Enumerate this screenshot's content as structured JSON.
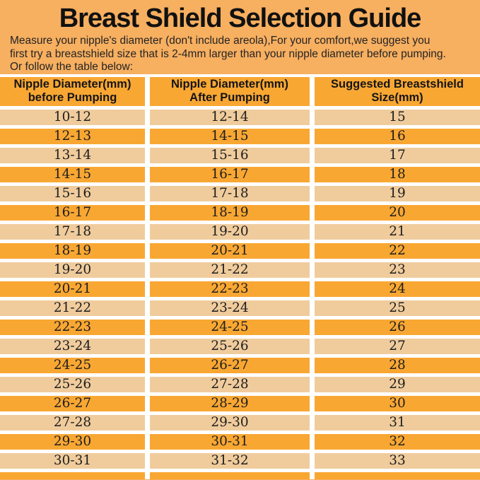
{
  "page": {
    "title": "Breast Shield Selection Guide",
    "intro_lines": [
      "Measure your nipple's diameter   (don't include areola),For your comfort,we suggest you",
      "first try a breastshield size that is 2-4mm larger than your nipple diameter before pumping.",
      "Or follow the table below:"
    ]
  },
  "table": {
    "headers": [
      {
        "line1": "Nipple Diameter(mm)",
        "line2": "before Pumping"
      },
      {
        "line1": "Nipple Diameter(mm)",
        "line2": "After Pumping"
      },
      {
        "line1": "Suggested Breastshield",
        "line2": "Size(mm)"
      }
    ],
    "rows": [
      [
        "10-12",
        "12-14",
        "15"
      ],
      [
        "12-13",
        "14-15",
        "16"
      ],
      [
        "13-14",
        "15-16",
        "17"
      ],
      [
        "14-15",
        "16-17",
        "18"
      ],
      [
        "15-16",
        "17-18",
        "19"
      ],
      [
        "16-17",
        "18-19",
        "20"
      ],
      [
        "17-18",
        "19-20",
        "21"
      ],
      [
        "18-19",
        "20-21",
        "22"
      ],
      [
        "19-20",
        "21-22",
        "23"
      ],
      [
        "20-21",
        "22-23",
        "24"
      ],
      [
        "21-22",
        "23-24",
        "25"
      ],
      [
        "22-23",
        "24-25",
        "26"
      ],
      [
        "23-24",
        "25-26",
        "27"
      ],
      [
        "24-25",
        "26-27",
        "28"
      ],
      [
        "25-26",
        "27-28",
        "29"
      ],
      [
        "26-27",
        "28-29",
        "30"
      ],
      [
        "27-28",
        "29-30",
        "31"
      ],
      [
        "29-30",
        "30-31",
        "32"
      ],
      [
        "30-31",
        "31-32",
        "33"
      ]
    ]
  },
  "colors": {
    "background": "#F7AF60",
    "header_and_dark_row": "#F9A733",
    "light_row": "#F0CC9D",
    "grid_gap": "#FFFFFF",
    "text": "#1B1B1B"
  }
}
